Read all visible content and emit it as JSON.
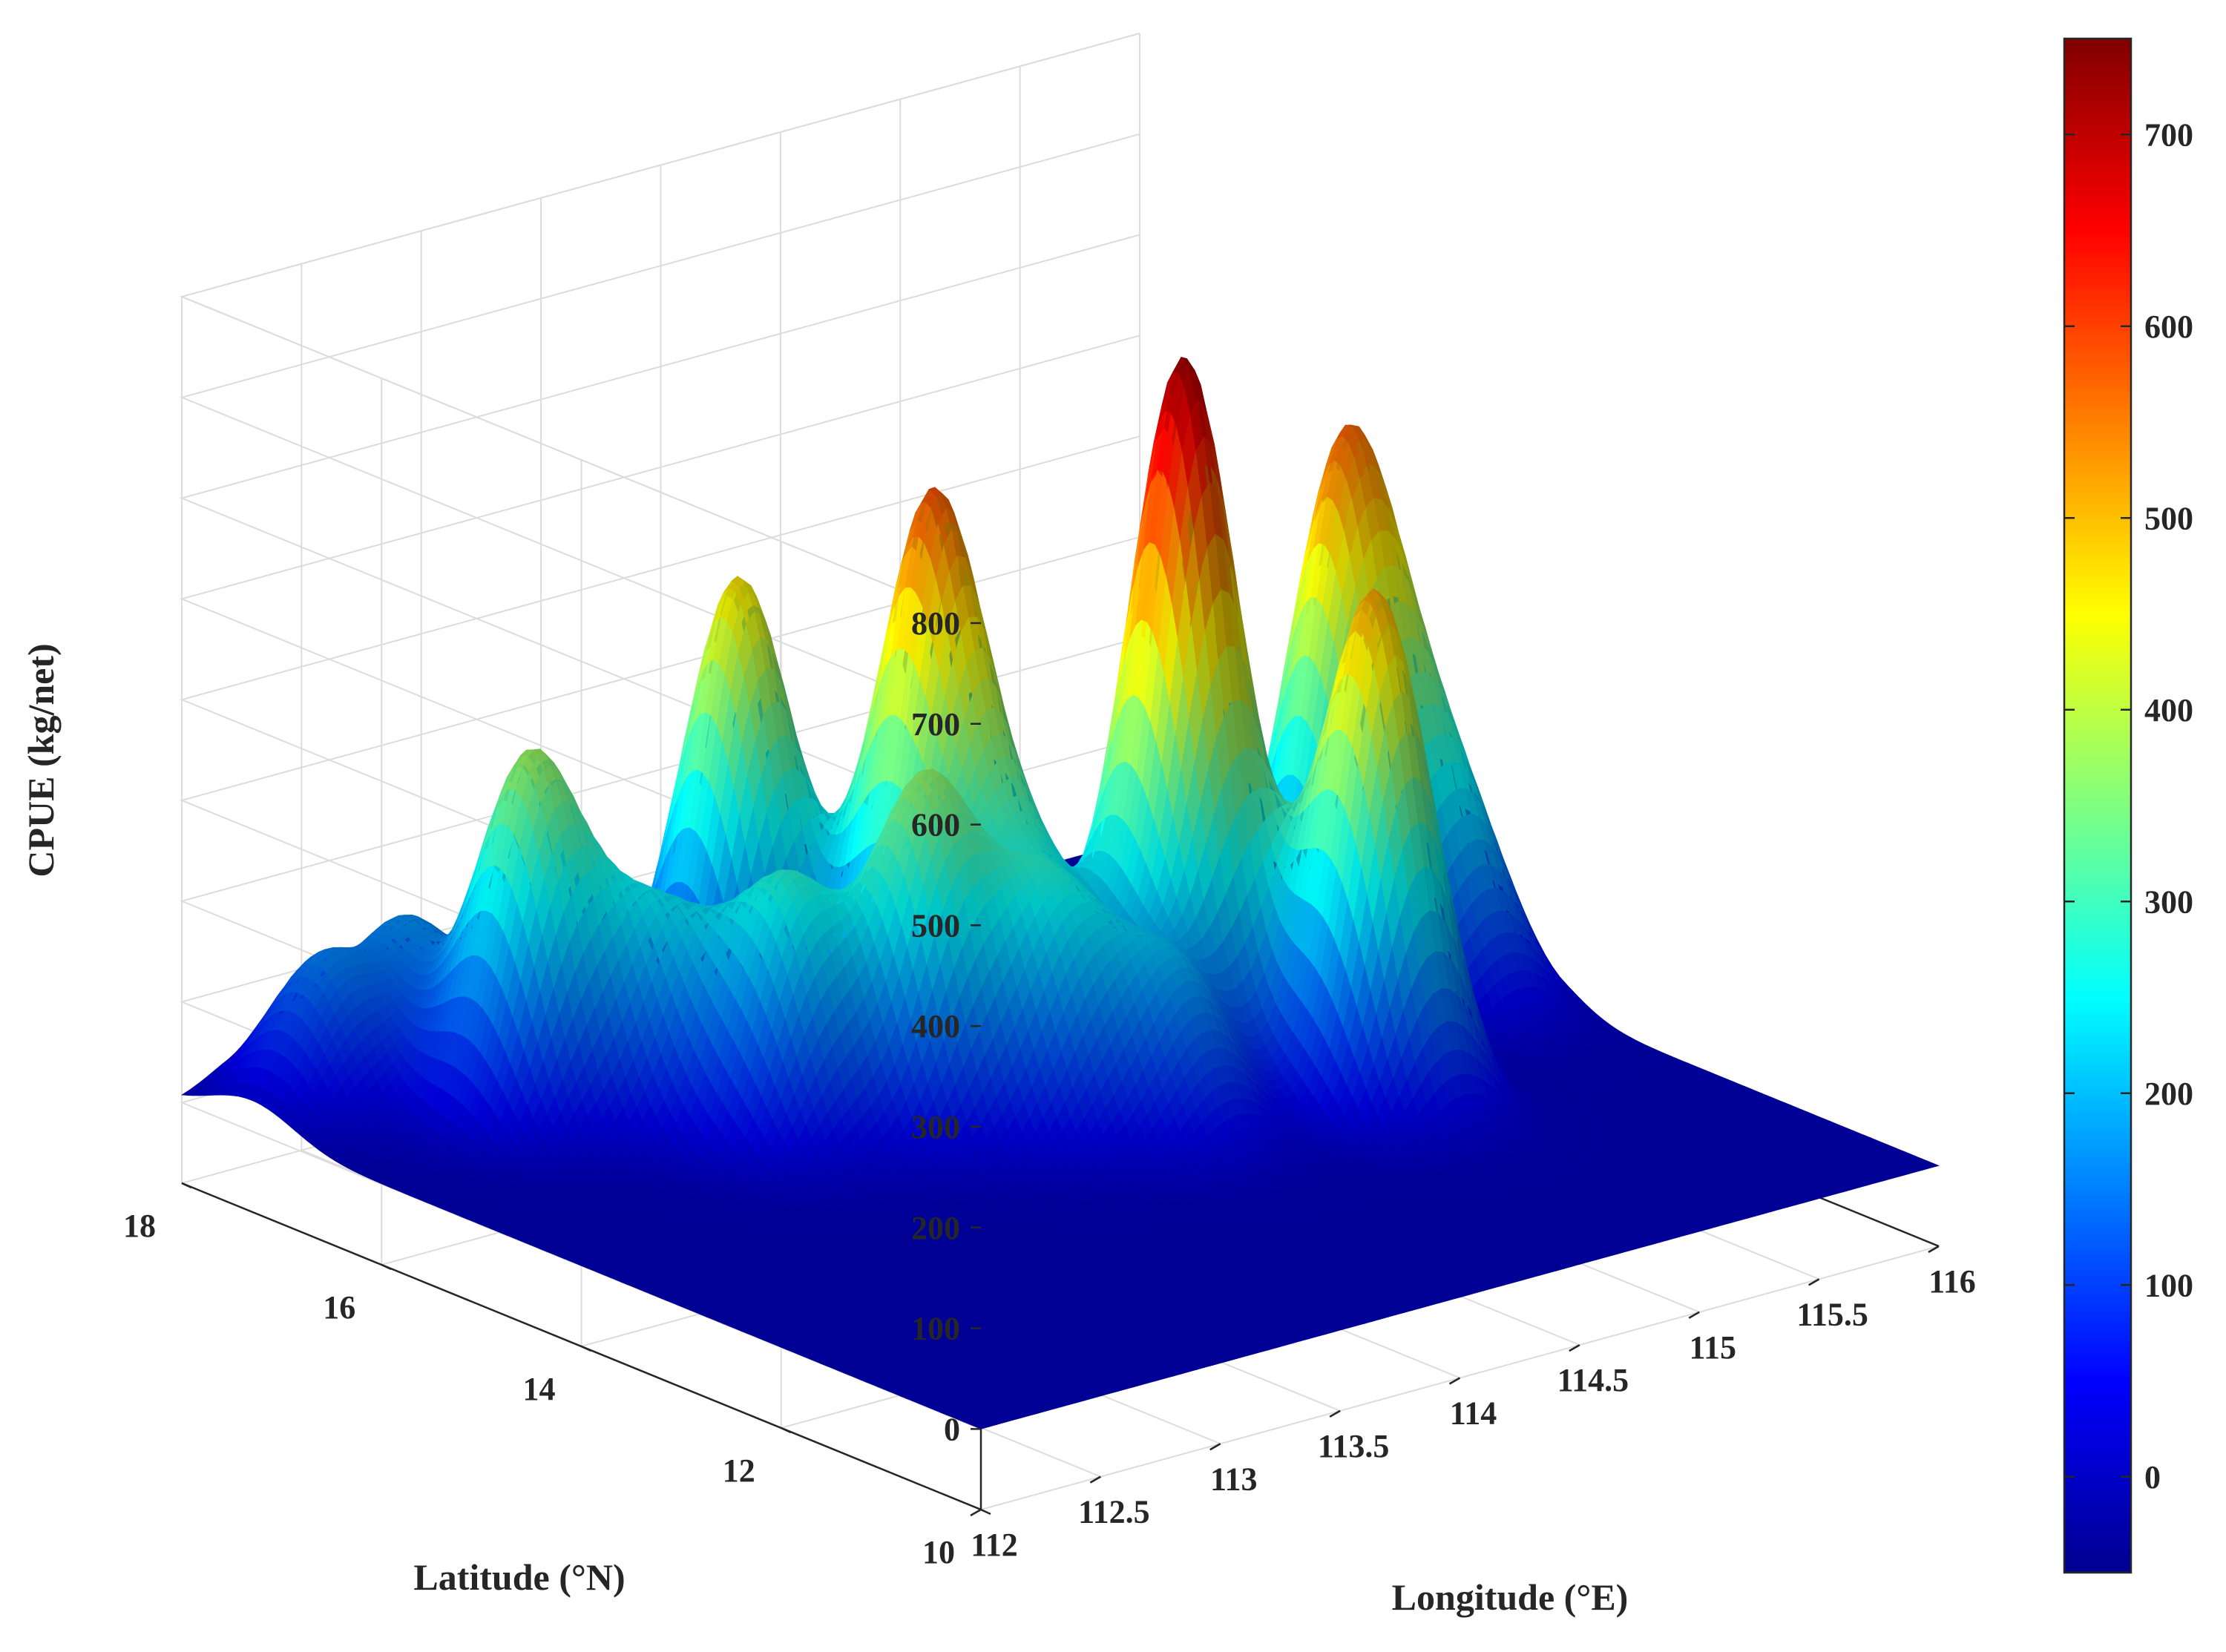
{
  "chart_data": {
    "type": "surface3d",
    "title": "",
    "xlabel": "Longitude (°E)",
    "ylabel": "Latitude (°N)",
    "zlabel": "CPUE (kg/net)",
    "xlim": [
      112,
      116
    ],
    "ylim": [
      10,
      18
    ],
    "zlim": [
      -80,
      800
    ],
    "x_ticks": [
      112,
      112.5,
      113,
      113.5,
      114,
      114.5,
      115,
      115.5,
      116
    ],
    "x_tick_labels": [
      "112",
      "112.5",
      "113",
      "113.5",
      "114",
      "114.5",
      "115",
      "115.5",
      "116"
    ],
    "y_ticks": [
      10,
      12,
      14,
      16,
      18
    ],
    "y_tick_labels": [
      "10",
      "12",
      "14",
      "16",
      "18"
    ],
    "z_ticks": [
      0,
      100,
      200,
      300,
      400,
      500,
      600,
      700,
      800
    ],
    "z_tick_labels": [
      "0",
      "100",
      "200",
      "300",
      "400",
      "500",
      "600",
      "700",
      "800"
    ],
    "colormap": "jet",
    "grid": true,
    "colorbar": {
      "range": [
        -50,
        750
      ],
      "ticks": [
        0,
        100,
        200,
        300,
        400,
        500,
        600,
        700
      ],
      "tick_labels": [
        "0",
        "100",
        "200",
        "300",
        "400",
        "500",
        "600",
        "700"
      ],
      "placement": "right"
    },
    "peaks": [
      {
        "lon": 114.6,
        "lat": 14.2,
        "cpue": 720
      },
      {
        "lon": 114.0,
        "lat": 15.3,
        "cpue": 560
      },
      {
        "lon": 113.7,
        "lat": 16.5,
        "cpue": 470
      },
      {
        "lon": 114.9,
        "lat": 13.0,
        "cpue": 520
      },
      {
        "lon": 112.7,
        "lat": 16.2,
        "cpue": 360
      },
      {
        "lon": 112.3,
        "lat": 17.3,
        "cpue": 145
      },
      {
        "lon": 112.7,
        "lat": 17.4,
        "cpue": 150
      },
      {
        "lon": 113.0,
        "lat": 15.6,
        "cpue": 195
      },
      {
        "lon": 113.2,
        "lat": 14.8,
        "cpue": 250
      },
      {
        "lon": 113.6,
        "lat": 14.4,
        "cpue": 340
      },
      {
        "lon": 113.9,
        "lat": 13.8,
        "cpue": 200
      },
      {
        "lon": 114.2,
        "lat": 13.3,
        "cpue": 170
      },
      {
        "lon": 114.1,
        "lat": 14.5,
        "cpue": 180
      },
      {
        "lon": 115.4,
        "lat": 14.6,
        "cpue": 360
      },
      {
        "lon": 115.6,
        "lat": 14.9,
        "cpue": 330
      },
      {
        "lon": 115.7,
        "lat": 14.1,
        "cpue": 200
      }
    ]
  }
}
